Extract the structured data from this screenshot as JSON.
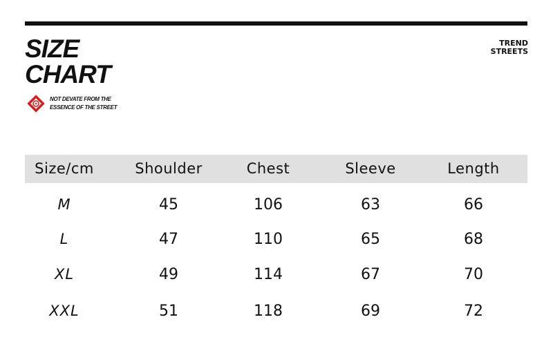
{
  "header": {
    "title_line1": "SIZE",
    "title_line2": "CHART",
    "tagline_line1": "NOT DEVATE FROM THE",
    "tagline_line2": "ESSENCE OF THE STREET",
    "brand_line1": "TREND",
    "brand_line2": "STREETS",
    "logo_icon": "red-diamond-target-icon",
    "accent_color": "#d42020"
  },
  "table": {
    "columns": [
      "Size/cm",
      "Shoulder",
      "Chest",
      "Sleeve",
      "Length"
    ],
    "rows": [
      [
        "M",
        "45",
        "106",
        "63",
        "66"
      ],
      [
        "L",
        "47",
        "110",
        "65",
        "68"
      ],
      [
        "XL",
        "49",
        "114",
        "67",
        "70"
      ],
      [
        "XXL",
        "51",
        "118",
        "69",
        "72"
      ]
    ]
  }
}
